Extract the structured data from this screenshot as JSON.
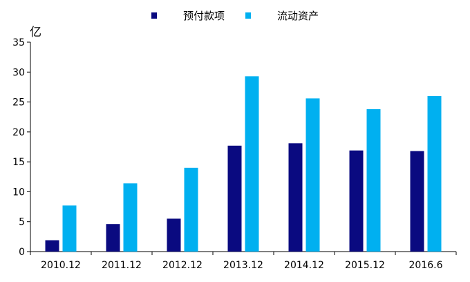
{
  "chart_data": {
    "type": "bar",
    "categories": [
      "2010.12",
      "2011.12",
      "2012.12",
      "2013.12",
      "2014.12",
      "2015.12",
      "2016.6"
    ],
    "series": [
      {
        "name": "预付款项",
        "values": [
          1.9,
          4.6,
          5.5,
          17.7,
          18.1,
          16.9,
          16.8
        ],
        "color": "#0a0a80"
      },
      {
        "name": "流动资产",
        "values": [
          7.7,
          11.4,
          14.0,
          29.3,
          25.6,
          23.8,
          26.0
        ],
        "color": "#00b0f0"
      }
    ],
    "y_unit": "亿",
    "ylim": [
      0,
      35
    ],
    "yticks": [
      0,
      5,
      10,
      15,
      20,
      25,
      30,
      35
    ],
    "grid": false,
    "legend": "top"
  }
}
